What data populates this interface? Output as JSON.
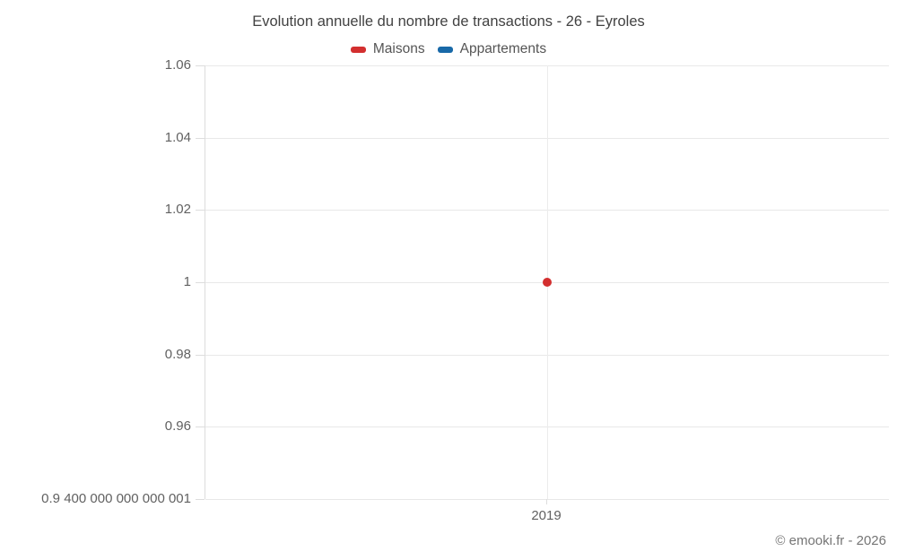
{
  "footer": {
    "copyright": "© emooki.fr - 2026"
  },
  "chart_data": {
    "type": "scatter",
    "title": "Evolution annuelle du nombre de transactions - 26 - Eyroles",
    "xlabel": "",
    "ylabel": "",
    "x_categories": [
      "2019"
    ],
    "y_tick_labels": [
      "1.06",
      "1.04",
      "1.02",
      "1",
      "0.98",
      "0.96",
      "0.9 400 000 000 000 001"
    ],
    "y_tick_values": [
      1.06,
      1.04,
      1.02,
      1.0,
      0.98,
      0.96,
      0.94
    ],
    "ylim": [
      0.94,
      1.06
    ],
    "grid": true,
    "legend_position": "top",
    "series": [
      {
        "name": "Maisons",
        "color": "#d32f2f",
        "points": [
          {
            "x": "2019",
            "y": 1.0
          }
        ]
      },
      {
        "name": "Appartements",
        "color": "#1869a8",
        "points": []
      }
    ]
  }
}
